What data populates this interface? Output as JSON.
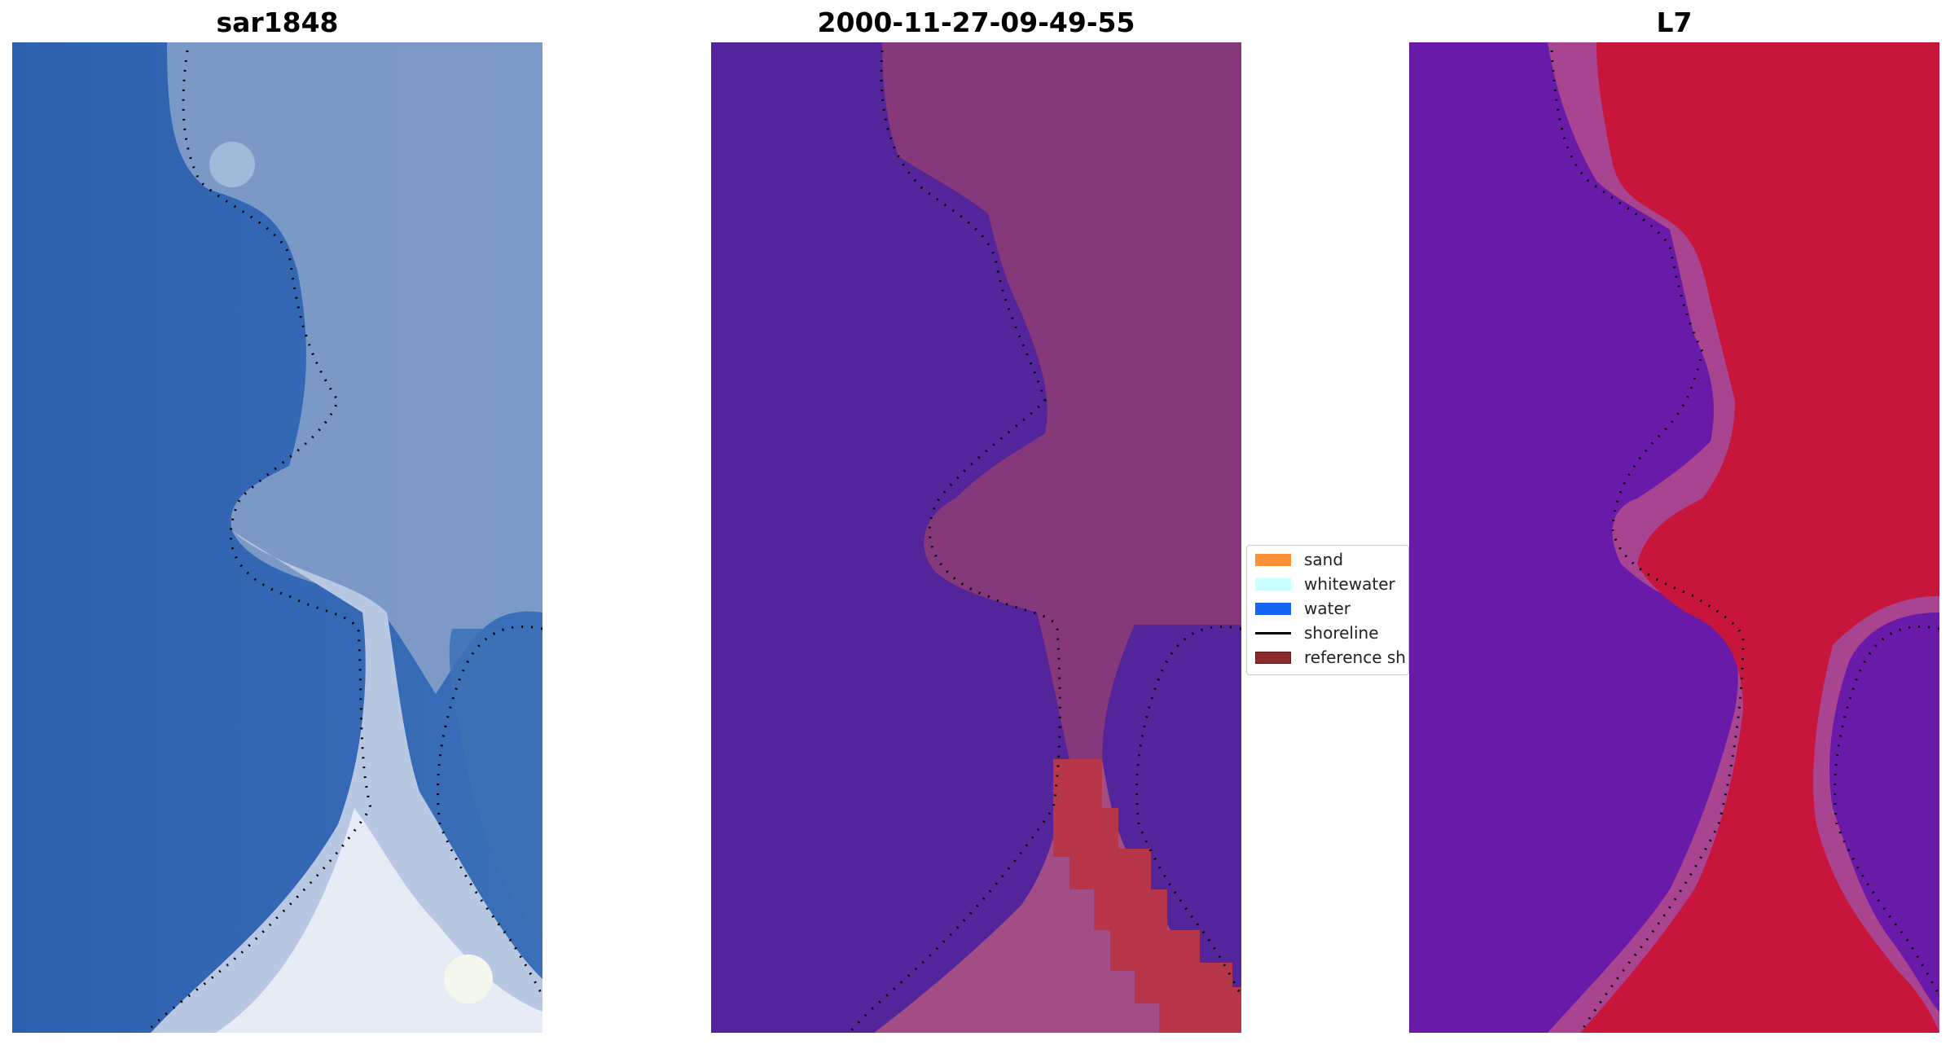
{
  "panels": [
    {
      "title": "sar1848"
    },
    {
      "title": "2000-11-27-09-49-55"
    },
    {
      "title": "L7"
    }
  ],
  "legend": {
    "items": [
      {
        "label": "sand",
        "color": "#ff9238",
        "kind": "patch"
      },
      {
        "label": "whitewater",
        "color": "#c8ffff",
        "kind": "patch"
      },
      {
        "label": "water",
        "color": "#1763f2",
        "kind": "patch"
      },
      {
        "label": "shoreline",
        "color": "#000000",
        "kind": "line"
      },
      {
        "label": "reference sh",
        "color": "#8b2b2b",
        "kind": "patch"
      }
    ]
  },
  "colors": {
    "sar_water": "#2e63b3",
    "sar_land": "#8ea8cf",
    "sar_bright": "#e6ecf5",
    "class_water": "#54249a",
    "class_land": "#8a3c7a",
    "class_sand": "#b8364a",
    "l7_water": "#6a1aa8",
    "l7_land": "#c8153c"
  }
}
